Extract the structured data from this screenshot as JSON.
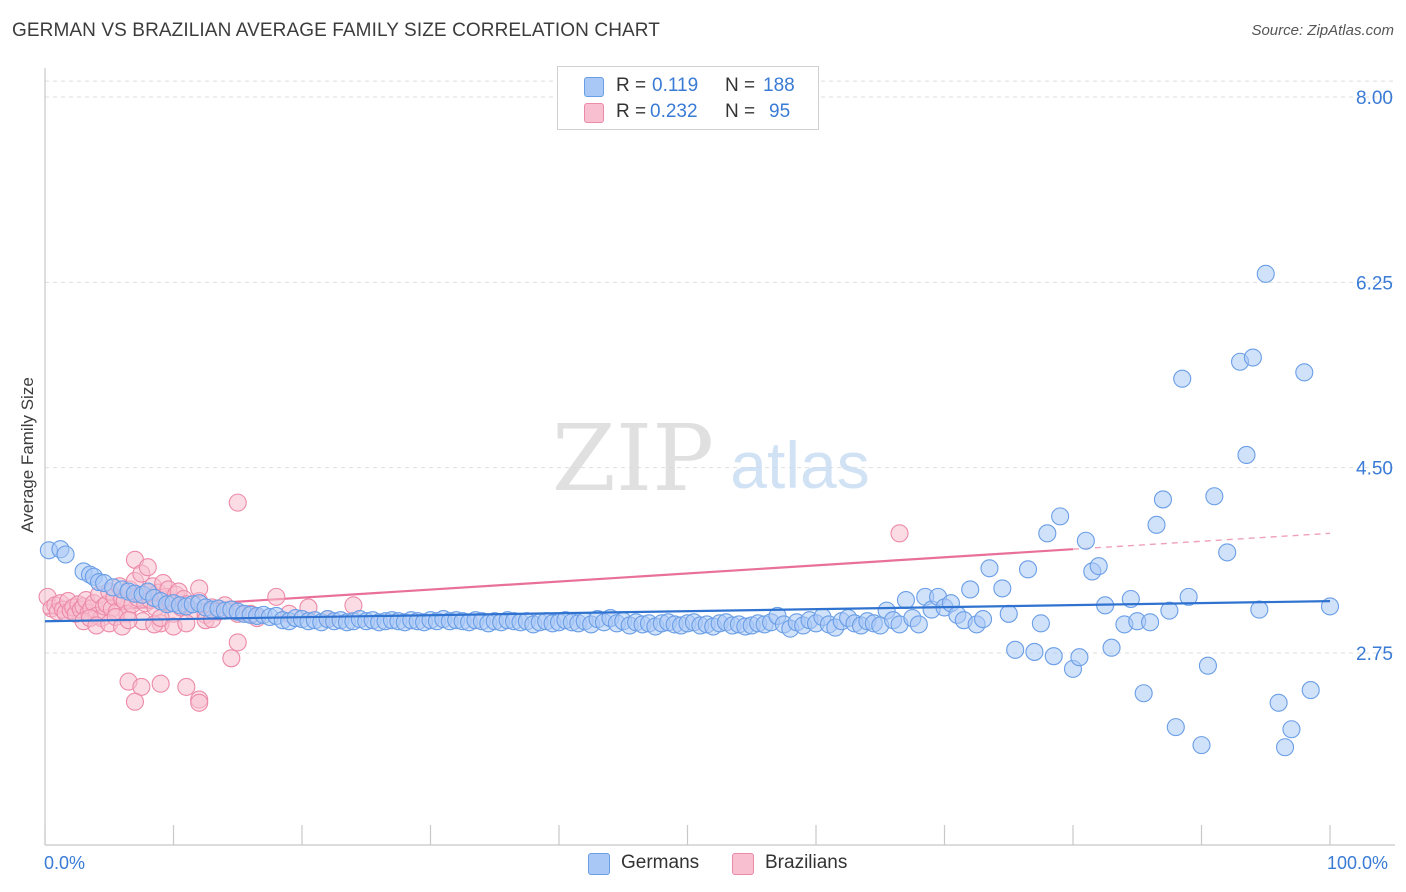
{
  "title": "GERMAN VS BRAZILIAN AVERAGE FAMILY SIZE CORRELATION CHART",
  "source": "Source: ZipAtlas.com",
  "watermark": {
    "zip": "ZIP",
    "atlas": "atlas"
  },
  "legend": {
    "rows": [
      {
        "r_label": "R =",
        "r_value": "0.119",
        "n_label": "N =",
        "n_value": "188",
        "color": "#a9c8f5",
        "border": "#6a9ee6"
      },
      {
        "r_label": "R =",
        "r_value": "0.232",
        "n_label": "N =",
        "n_value": "95",
        "color": "#f8bfd0",
        "border": "#ec8aa8"
      }
    ]
  },
  "bottom_legend": {
    "germans": "Germans",
    "brazilians": "Brazilians"
  },
  "x_axis": {
    "min_label": "0.0%",
    "max_label": "100.0%"
  },
  "chart_data": {
    "type": "scatter",
    "title": "GERMAN VS BRAZILIAN AVERAGE FAMILY SIZE CORRELATION CHART",
    "xlabel": "",
    "ylabel": "Average Family Size",
    "xlim": [
      0,
      100
    ],
    "ylim": [
      1.3,
      8.2
    ],
    "yticks": [
      2.75,
      4.5,
      6.25,
      8.0
    ],
    "ytick_labels": [
      "2.75",
      "4.50",
      "6.25",
      "8.00"
    ],
    "grid": true,
    "legend_position": "top-center",
    "series": [
      {
        "name": "Germans",
        "color": "#6a9ee6",
        "fill": "#a9c8f5",
        "trend": {
          "x": [
            0,
            100
          ],
          "y": [
            3.05,
            3.24
          ]
        },
        "points": [
          [
            0.3,
            3.72
          ],
          [
            1.2,
            3.73
          ],
          [
            1.6,
            3.68
          ],
          [
            3.0,
            3.52
          ],
          [
            3.5,
            3.49
          ],
          [
            3.8,
            3.47
          ],
          [
            4.2,
            3.42
          ],
          [
            4.6,
            3.41
          ],
          [
            5.3,
            3.37
          ],
          [
            6.0,
            3.35
          ],
          [
            6.5,
            3.33
          ],
          [
            7.0,
            3.31
          ],
          [
            7.6,
            3.3
          ],
          [
            8.0,
            3.33
          ],
          [
            8.5,
            3.27
          ],
          [
            9.0,
            3.24
          ],
          [
            9.5,
            3.21
          ],
          [
            10.0,
            3.22
          ],
          [
            10.5,
            3.2
          ],
          [
            11.0,
            3.19
          ],
          [
            11.5,
            3.21
          ],
          [
            12.0,
            3.22
          ],
          [
            12.5,
            3.18
          ],
          [
            13.0,
            3.16
          ],
          [
            13.5,
            3.17
          ],
          [
            14.0,
            3.15
          ],
          [
            14.5,
            3.16
          ],
          [
            15.0,
            3.14
          ],
          [
            15.5,
            3.12
          ],
          [
            16.0,
            3.11
          ],
          [
            16.5,
            3.1
          ],
          [
            17.0,
            3.11
          ],
          [
            17.5,
            3.09
          ],
          [
            18.0,
            3.1
          ],
          [
            18.5,
            3.06
          ],
          [
            19.0,
            3.05
          ],
          [
            19.5,
            3.08
          ],
          [
            20.0,
            3.07
          ],
          [
            20.5,
            3.05
          ],
          [
            21.0,
            3.06
          ],
          [
            21.5,
            3.04
          ],
          [
            22.0,
            3.07
          ],
          [
            22.5,
            3.05
          ],
          [
            23.0,
            3.06
          ],
          [
            23.5,
            3.04
          ],
          [
            24.0,
            3.05
          ],
          [
            24.5,
            3.07
          ],
          [
            25.0,
            3.05
          ],
          [
            25.5,
            3.06
          ],
          [
            26.0,
            3.04
          ],
          [
            26.5,
            3.05
          ],
          [
            27.0,
            3.06
          ],
          [
            27.5,
            3.05
          ],
          [
            28.0,
            3.04
          ],
          [
            28.5,
            3.06
          ],
          [
            29.0,
            3.05
          ],
          [
            29.5,
            3.04
          ],
          [
            30.0,
            3.06
          ],
          [
            30.5,
            3.05
          ],
          [
            31.0,
            3.07
          ],
          [
            31.5,
            3.05
          ],
          [
            32.0,
            3.06
          ],
          [
            32.5,
            3.05
          ],
          [
            33.0,
            3.04
          ],
          [
            33.5,
            3.06
          ],
          [
            34.0,
            3.05
          ],
          [
            34.5,
            3.03
          ],
          [
            35.0,
            3.05
          ],
          [
            35.5,
            3.04
          ],
          [
            36.0,
            3.06
          ],
          [
            36.5,
            3.05
          ],
          [
            37.0,
            3.04
          ],
          [
            37.5,
            3.05
          ],
          [
            38.0,
            3.02
          ],
          [
            38.5,
            3.04
          ],
          [
            39.0,
            3.05
          ],
          [
            39.5,
            3.03
          ],
          [
            40.0,
            3.04
          ],
          [
            40.5,
            3.06
          ],
          [
            41.0,
            3.04
          ],
          [
            41.5,
            3.03
          ],
          [
            42.0,
            3.05
          ],
          [
            42.5,
            3.02
          ],
          [
            43.0,
            3.07
          ],
          [
            43.5,
            3.04
          ],
          [
            44.0,
            3.08
          ],
          [
            44.5,
            3.03
          ],
          [
            45.0,
            3.05
          ],
          [
            45.5,
            3.01
          ],
          [
            46.0,
            3.04
          ],
          [
            46.5,
            3.02
          ],
          [
            47.0,
            3.03
          ],
          [
            47.5,
            3.0
          ],
          [
            48.0,
            3.03
          ],
          [
            48.5,
            3.04
          ],
          [
            49.0,
            3.02
          ],
          [
            49.5,
            3.01
          ],
          [
            50.0,
            3.03
          ],
          [
            50.5,
            3.04
          ],
          [
            51.0,
            3.01
          ],
          [
            51.5,
            3.02
          ],
          [
            52.0,
            3.0
          ],
          [
            52.5,
            3.03
          ],
          [
            53.0,
            3.04
          ],
          [
            53.5,
            3.01
          ],
          [
            54.0,
            3.02
          ],
          [
            54.5,
            3.0
          ],
          [
            55.0,
            3.01
          ],
          [
            55.5,
            3.03
          ],
          [
            56.0,
            3.02
          ],
          [
            56.5,
            3.04
          ],
          [
            57.0,
            3.1
          ],
          [
            57.5,
            3.02
          ],
          [
            58.0,
            2.98
          ],
          [
            58.5,
            3.04
          ],
          [
            59.0,
            3.01
          ],
          [
            59.5,
            3.06
          ],
          [
            60.0,
            3.03
          ],
          [
            60.5,
            3.09
          ],
          [
            61.0,
            3.02
          ],
          [
            61.5,
            2.99
          ],
          [
            62.0,
            3.05
          ],
          [
            62.5,
            3.08
          ],
          [
            63.0,
            3.03
          ],
          [
            63.5,
            3.01
          ],
          [
            64.0,
            3.05
          ],
          [
            64.5,
            3.03
          ],
          [
            65.0,
            3.01
          ],
          [
            65.5,
            3.15
          ],
          [
            66.0,
            3.06
          ],
          [
            66.5,
            3.02
          ],
          [
            67.0,
            3.25
          ],
          [
            67.5,
            3.08
          ],
          [
            68.0,
            3.02
          ],
          [
            68.5,
            3.28
          ],
          [
            69.0,
            3.16
          ],
          [
            69.5,
            3.28
          ],
          [
            70.0,
            3.18
          ],
          [
            70.5,
            3.22
          ],
          [
            71.0,
            3.11
          ],
          [
            71.5,
            3.06
          ],
          [
            72.0,
            3.35
          ],
          [
            72.5,
            3.02
          ],
          [
            73.0,
            3.07
          ],
          [
            73.5,
            3.55
          ],
          [
            74.5,
            3.36
          ],
          [
            75.0,
            3.12
          ],
          [
            75.5,
            2.78
          ],
          [
            76.5,
            3.54
          ],
          [
            77.0,
            2.76
          ],
          [
            77.5,
            3.03
          ],
          [
            78.0,
            3.88
          ],
          [
            78.5,
            2.72
          ],
          [
            79.0,
            4.04
          ],
          [
            80.0,
            2.6
          ],
          [
            80.5,
            2.71
          ],
          [
            81.0,
            3.81
          ],
          [
            81.5,
            3.52
          ],
          [
            82.0,
            3.57
          ],
          [
            82.5,
            3.2
          ],
          [
            83.0,
            2.8
          ],
          [
            84.0,
            3.02
          ],
          [
            84.5,
            3.26
          ],
          [
            85.0,
            3.05
          ],
          [
            85.5,
            2.37
          ],
          [
            86.0,
            3.04
          ],
          [
            86.5,
            3.96
          ],
          [
            87.0,
            4.2
          ],
          [
            87.5,
            3.15
          ],
          [
            88.0,
            2.05
          ],
          [
            88.5,
            5.34
          ],
          [
            89.0,
            3.28
          ],
          [
            90.0,
            1.88
          ],
          [
            90.5,
            2.63
          ],
          [
            91.0,
            4.23
          ],
          [
            92.0,
            3.7
          ],
          [
            93.0,
            5.5
          ],
          [
            93.5,
            4.62
          ],
          [
            94.0,
            5.54
          ],
          [
            94.5,
            3.16
          ],
          [
            95.0,
            6.33
          ],
          [
            96.0,
            2.28
          ],
          [
            96.5,
            1.86
          ],
          [
            97.0,
            2.03
          ],
          [
            98.0,
            5.4
          ],
          [
            98.5,
            2.4
          ],
          [
            100.0,
            3.19
          ]
        ]
      },
      {
        "name": "Brazilians",
        "color": "#ec8aa8",
        "fill": "#f8bfd0",
        "trend_solid": {
          "x": [
            0,
            80
          ],
          "y": [
            3.12,
            3.73
          ]
        },
        "trend_dashed": {
          "x": [
            80,
            100
          ],
          "y": [
            3.73,
            3.88
          ]
        },
        "points": [
          [
            0.2,
            3.28
          ],
          [
            0.5,
            3.17
          ],
          [
            0.8,
            3.2
          ],
          [
            1.0,
            3.14
          ],
          [
            1.2,
            3.22
          ],
          [
            1.4,
            3.16
          ],
          [
            1.6,
            3.13
          ],
          [
            1.8,
            3.24
          ],
          [
            2.0,
            3.15
          ],
          [
            2.2,
            3.18
          ],
          [
            2.4,
            3.12
          ],
          [
            2.6,
            3.21
          ],
          [
            2.8,
            3.16
          ],
          [
            3.0,
            3.19
          ],
          [
            3.2,
            3.25
          ],
          [
            3.4,
            3.13
          ],
          [
            3.6,
            3.17
          ],
          [
            3.8,
            3.22
          ],
          [
            4.0,
            3.1
          ],
          [
            4.2,
            3.3
          ],
          [
            4.4,
            3.08
          ],
          [
            4.6,
            3.19
          ],
          [
            4.8,
            3.21
          ],
          [
            5.0,
            3.33
          ],
          [
            5.2,
            3.17
          ],
          [
            5.4,
            3.28
          ],
          [
            5.6,
            3.14
          ],
          [
            5.8,
            3.38
          ],
          [
            6.0,
            3.26
          ],
          [
            6.2,
            3.24
          ],
          [
            6.4,
            3.12
          ],
          [
            6.6,
            3.35
          ],
          [
            6.8,
            3.21
          ],
          [
            7.0,
            3.43
          ],
          [
            7.2,
            3.27
          ],
          [
            7.4,
            3.3
          ],
          [
            7.6,
            3.05
          ],
          [
            7.8,
            3.22
          ],
          [
            8.0,
            3.32
          ],
          [
            8.2,
            3.25
          ],
          [
            8.4,
            3.38
          ],
          [
            8.6,
            3.18
          ],
          [
            8.8,
            3.32
          ],
          [
            9.0,
            3.03
          ],
          [
            9.2,
            3.41
          ],
          [
            9.4,
            3.28
          ],
          [
            9.6,
            3.35
          ],
          [
            9.8,
            3.22
          ],
          [
            10.0,
            3.12
          ],
          [
            10.2,
            3.3
          ],
          [
            10.4,
            3.33
          ],
          [
            10.6,
            3.18
          ],
          [
            10.8,
            3.26
          ],
          [
            11.0,
            3.21
          ],
          [
            11.5,
            3.15
          ],
          [
            12.0,
            3.24
          ],
          [
            12.5,
            3.11
          ],
          [
            13.0,
            3.18
          ],
          [
            13.5,
            3.14
          ],
          [
            14.0,
            3.2
          ],
          [
            14.5,
            3.16
          ],
          [
            15.0,
            3.12
          ],
          [
            3.0,
            3.05
          ],
          [
            3.5,
            3.08
          ],
          [
            4.0,
            3.01
          ],
          [
            5.0,
            3.03
          ],
          [
            5.5,
            3.09
          ],
          [
            6.0,
            3.0
          ],
          [
            6.5,
            3.06
          ],
          [
            7.0,
            3.63
          ],
          [
            7.5,
            3.5
          ],
          [
            8.0,
            3.56
          ],
          [
            8.5,
            3.02
          ],
          [
            9.0,
            3.08
          ],
          [
            10.0,
            3.0
          ],
          [
            11.0,
            3.03
          ],
          [
            12.0,
            3.36
          ],
          [
            12.5,
            3.06
          ],
          [
            13.0,
            3.07
          ],
          [
            6.5,
            2.48
          ],
          [
            7.5,
            2.43
          ],
          [
            9.0,
            2.46
          ],
          [
            11.0,
            2.43
          ],
          [
            12.0,
            2.31
          ],
          [
            14.5,
            2.7
          ],
          [
            15.0,
            2.85
          ],
          [
            16.0,
            3.12
          ],
          [
            16.5,
            3.08
          ],
          [
            18.0,
            3.28
          ],
          [
            19.0,
            3.12
          ],
          [
            20.5,
            3.18
          ],
          [
            22.0,
            3.07
          ],
          [
            24.0,
            3.2
          ],
          [
            7.0,
            2.29
          ],
          [
            12.0,
            2.28
          ],
          [
            15.0,
            4.17
          ],
          [
            66.5,
            3.88
          ]
        ]
      }
    ]
  }
}
